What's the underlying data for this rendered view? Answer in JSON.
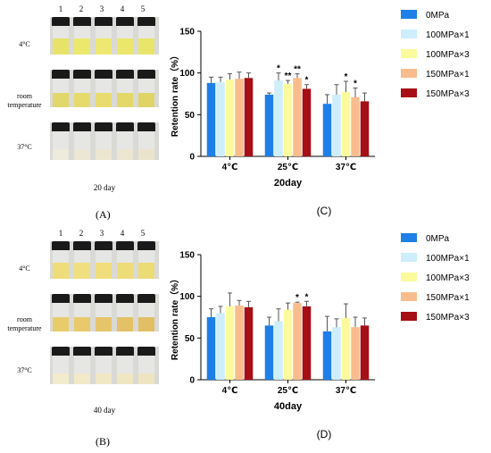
{
  "photos": [
    {
      "vial_numbers": [
        "1",
        "2",
        "3",
        "4",
        "5"
      ],
      "rows": [
        "4°C",
        "room\ntemperature",
        "37°C"
      ],
      "caption": "20 day",
      "letter": "(A)",
      "liquid_colors": [
        [
          "#e8e26a",
          "#ece86e",
          "#eee873",
          "#ece66c",
          "#e9e46a"
        ],
        [
          "#e2d76a",
          "#e6da6c",
          "#e8dc6e",
          "#e4d86a",
          "#e0d466"
        ],
        [
          "#eeeadc",
          "#ece6d4",
          "#ece6d0",
          "#ece5cf",
          "#ebe4cc"
        ]
      ]
    },
    {
      "vial_numbers": [
        "1",
        "2",
        "3",
        "4",
        "5"
      ],
      "rows": [
        "4°C",
        "room\ntemperature",
        "37°C"
      ],
      "caption": "40 day",
      "letter": "(B)",
      "liquid_colors": [
        [
          "#eedd7a",
          "#f0df7e",
          "#f0de7c",
          "#eedc78",
          "#eddb76"
        ],
        [
          "#e8cc6a",
          "#e9c96c",
          "#e6c46a",
          "#e4c066",
          "#e2bf64"
        ],
        [
          "#f2ebcd",
          "#f1e9c8",
          "#f0e7c5",
          "#efe6c2",
          "#eee4bf"
        ]
      ]
    }
  ],
  "chart_data": [
    {
      "type": "bar",
      "letter": "(C)",
      "ylabel": "Retention rate（%）",
      "xlabel": "20day",
      "categories": [
        "4℃",
        "25℃",
        "37℃"
      ],
      "ylim": [
        0,
        150
      ],
      "yticks": [
        "0",
        "50",
        "100",
        "150"
      ],
      "legend_position": "right",
      "series": [
        {
          "name": "0MPa",
          "color": "#1e7fe6",
          "values": [
            88,
            74,
            63
          ],
          "errors": [
            7,
            2,
            11
          ],
          "stars": [
            "",
            "",
            ""
          ]
        },
        {
          "name": "100MPa×1",
          "color": "#cdeefa",
          "values": [
            89,
            91,
            74
          ],
          "errors": [
            6,
            9,
            12
          ],
          "stars": [
            "",
            "*",
            ""
          ]
        },
        {
          "name": "100MPa×3",
          "color": "#fbfb9e",
          "values": [
            92,
            87,
            77
          ],
          "errors": [
            7,
            4,
            13
          ],
          "stars": [
            "",
            "**",
            "*"
          ]
        },
        {
          "name": "150MPa×1",
          "color": "#f9bd8d",
          "values": [
            93,
            94,
            71
          ],
          "errors": [
            8,
            5,
            11
          ],
          "stars": [
            "",
            "**",
            "*"
          ]
        },
        {
          "name": "150MPa×3",
          "color": "#a50f15",
          "values": [
            94,
            81,
            66
          ],
          "errors": [
            6,
            5,
            10
          ],
          "stars": [
            "",
            "*",
            ""
          ]
        }
      ]
    },
    {
      "type": "bar",
      "letter": "(D)",
      "ylabel": "Retention rate（%）",
      "xlabel": "40day",
      "categories": [
        "4℃",
        "25℃",
        "37℃"
      ],
      "ylim": [
        0,
        150
      ],
      "yticks": [
        "0",
        "50",
        "100",
        "150"
      ],
      "legend_position": "right",
      "series": [
        {
          "name": "0MPa",
          "color": "#1e7fe6",
          "values": [
            75,
            65,
            58
          ],
          "errors": [
            10,
            10,
            18
          ],
          "stars": [
            "",
            "",
            ""
          ]
        },
        {
          "name": "100MPa×1",
          "color": "#cdeefa",
          "values": [
            80,
            70,
            63
          ],
          "errors": [
            8,
            15,
            10
          ],
          "stars": [
            "",
            "",
            ""
          ]
        },
        {
          "name": "100MPa×3",
          "color": "#fbfb9e",
          "values": [
            88,
            84,
            74
          ],
          "errors": [
            16,
            8,
            17
          ],
          "stars": [
            "",
            "",
            ""
          ]
        },
        {
          "name": "150MPa×1",
          "color": "#f9bd8d",
          "values": [
            89,
            92,
            63
          ],
          "errors": [
            6,
            1,
            12
          ],
          "stars": [
            "",
            "*",
            ""
          ]
        },
        {
          "name": "150MPa×3",
          "color": "#a50f15",
          "values": [
            87,
            88,
            65
          ],
          "errors": [
            7,
            6,
            9
          ],
          "stars": [
            "",
            "*",
            ""
          ]
        }
      ]
    }
  ]
}
